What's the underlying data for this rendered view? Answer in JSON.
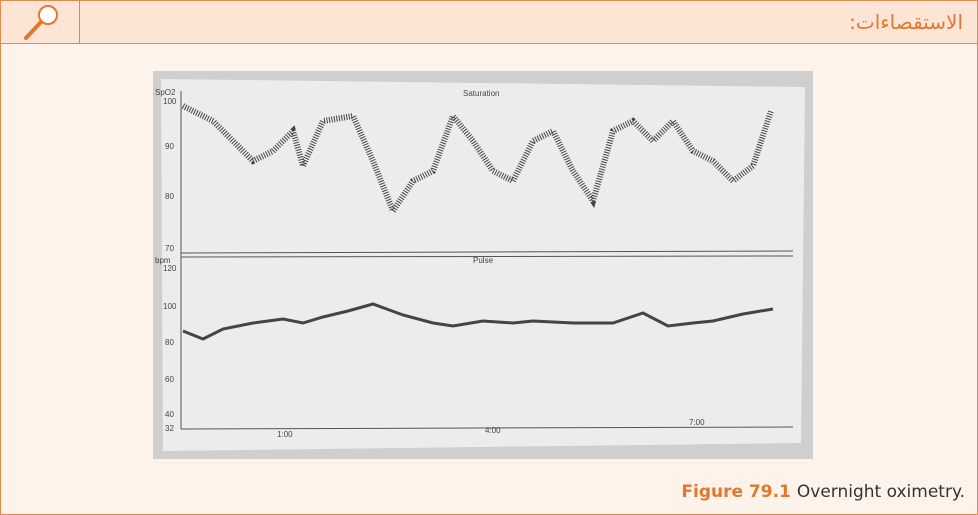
{
  "header": {
    "title": "الاستقصاءات:"
  },
  "figure": {
    "saturation": {
      "axis_label": "SpO2",
      "title": "Saturation",
      "ticks": [
        "100",
        "90",
        "80",
        "70"
      ]
    },
    "pulse": {
      "axis_label": "bpm",
      "title": "Pulse",
      "ticks": [
        "120",
        "100",
        "80",
        "60",
        "40",
        "32"
      ]
    },
    "time_labels": [
      "1:00",
      "4:00",
      "7:00"
    ]
  },
  "caption": {
    "label": "Figure 79.1",
    "text": "Overnight oximetry."
  }
}
